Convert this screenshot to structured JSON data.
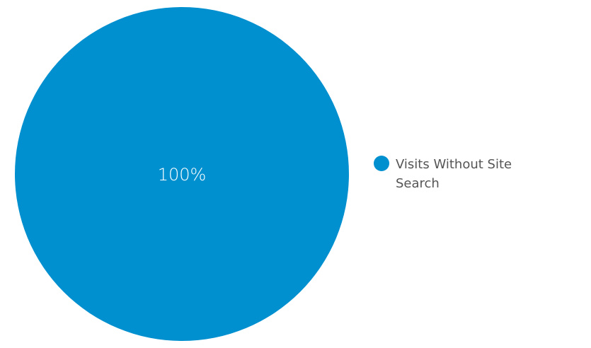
{
  "chart_data": {
    "type": "pie",
    "slices": [
      {
        "label": "Visits Without Site Search",
        "value": 100,
        "value_label": "100%",
        "color": "#0090d0"
      }
    ],
    "legend": {
      "position": "right",
      "entries": [
        "Visits Without Site Search"
      ]
    }
  }
}
